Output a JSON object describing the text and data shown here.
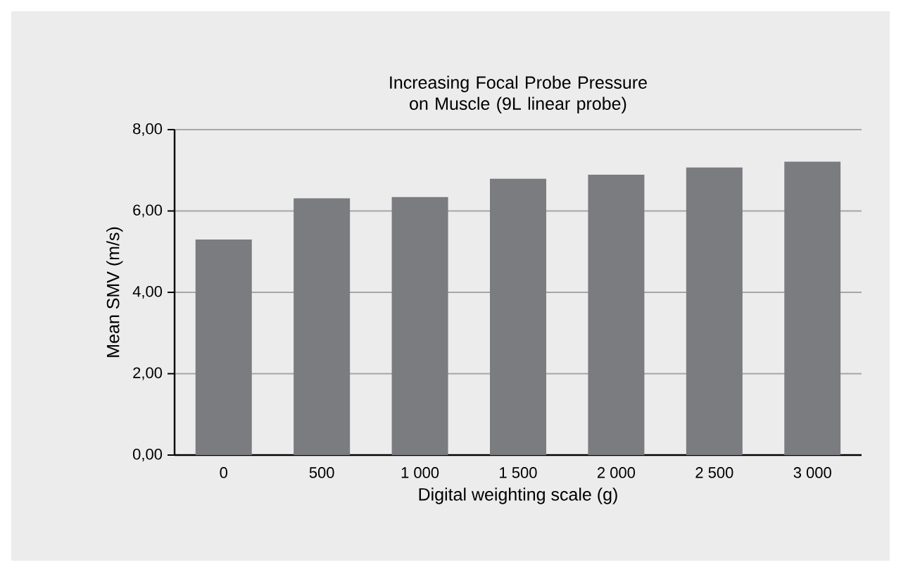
{
  "chart_data": {
    "type": "bar",
    "title": "Increasing Focal Probe Pressure on Muscle (9L linear probe)",
    "xlabel": "Digital weighting scale (g)",
    "ylabel": "Mean SMV (m/s)",
    "categories": [
      "0",
      "500",
      "1 000",
      "1 500",
      "2 000",
      "2 500",
      "3 000"
    ],
    "values": [
      5.3,
      6.31,
      6.34,
      6.79,
      6.89,
      7.07,
      7.21
    ],
    "color": "#7b7c80",
    "ylim": [
      0,
      8
    ],
    "yticks": [
      {
        "value": 0,
        "label": "0,00"
      },
      {
        "value": 2,
        "label": "2,00"
      },
      {
        "value": 4,
        "label": "4,00"
      },
      {
        "value": 6,
        "label": "6,00"
      },
      {
        "value": 8,
        "label": "8,00"
      }
    ],
    "grid": "y"
  }
}
